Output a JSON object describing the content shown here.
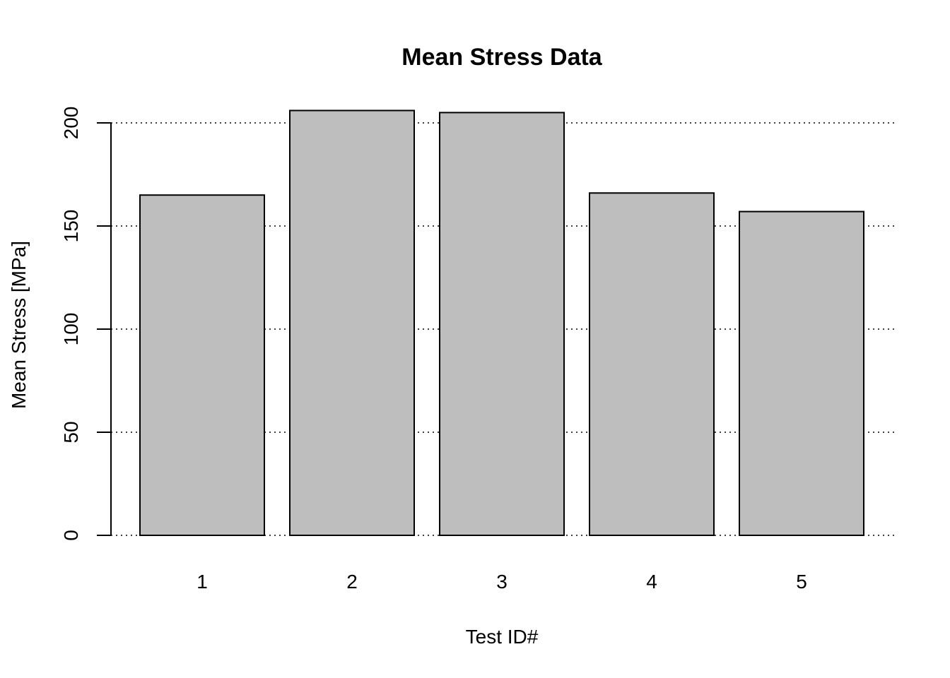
{
  "chart_data": {
    "type": "bar",
    "title": "Mean Stress Data",
    "xlabel": "Test ID#",
    "ylabel": "Mean Stress [MPa]",
    "categories": [
      "1",
      "2",
      "3",
      "4",
      "5"
    ],
    "values": [
      165,
      206,
      205,
      166,
      157
    ],
    "ylim": [
      0,
      200
    ],
    "yticks": [
      0,
      50,
      100,
      150,
      200
    ],
    "grid": "horizontal dotted",
    "bar_color": "#bebebe",
    "bar_border_color": "#000000"
  }
}
